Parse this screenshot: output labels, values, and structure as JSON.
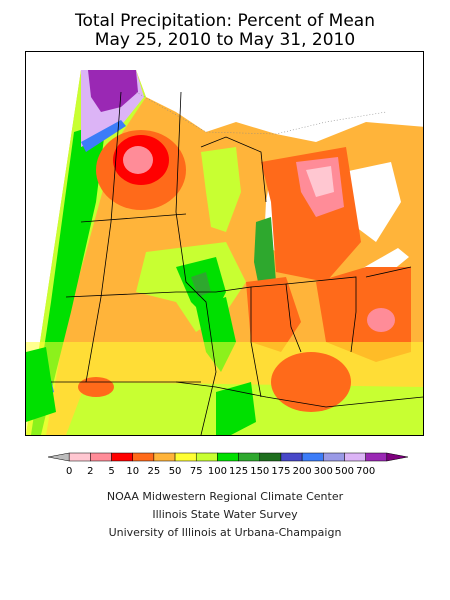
{
  "title": {
    "line1": "Total Precipitation: Percent of Mean",
    "line2": "May 25, 2010 to May 31, 2010"
  },
  "legend": {
    "labels": [
      "0",
      "2",
      "5",
      "10",
      "25",
      "50",
      "75",
      "100",
      "125",
      "150",
      "175",
      "200",
      "300",
      "500",
      "700"
    ],
    "colors": [
      "#bcbcbc",
      "#ffc7d1",
      "#ff8c98",
      "#ff0000",
      "#ff6a1a",
      "#ffb43a",
      "#ffff33",
      "#c8ff32",
      "#00e000",
      "#2ea82e",
      "#1e6e1e",
      "#4848c8",
      "#3c7cf8",
      "#9a9ae6",
      "#dcb4f6",
      "#9a28b4",
      "#7d007d"
    ]
  },
  "credits": {
    "line1": "NOAA Midwestern Regional Climate Center",
    "line2": "Illinois State Water Survey",
    "line3": "University of Illinois at Urbana-Champaign"
  }
}
